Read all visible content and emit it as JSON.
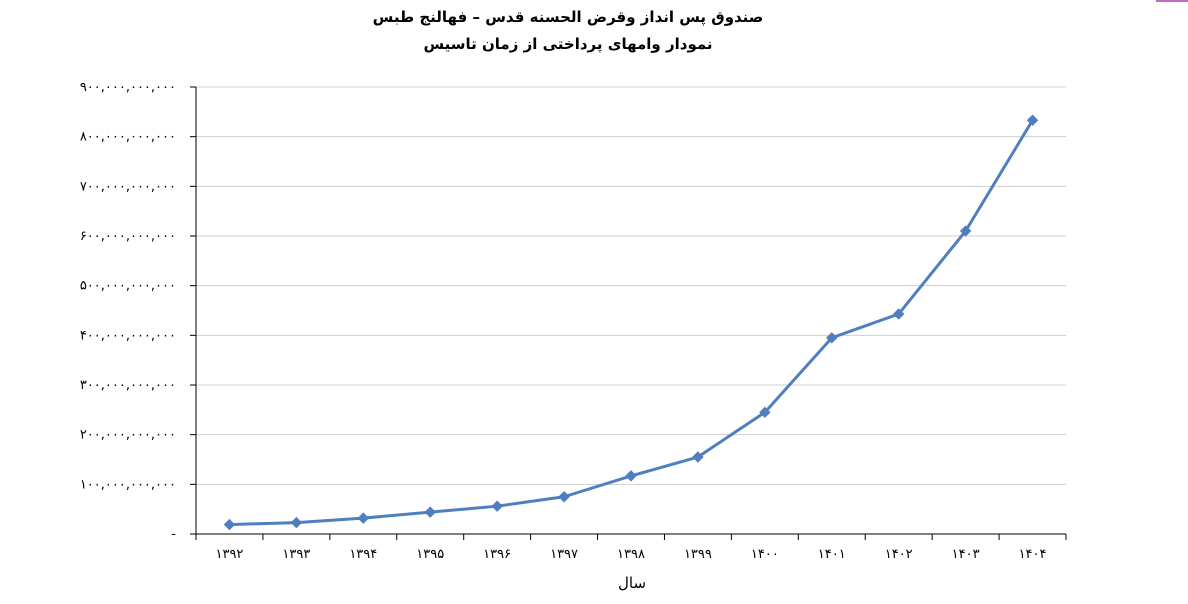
{
  "chart_data": {
    "type": "line",
    "title": "صندوق پس انداز وقرض الحسنه قدس – فهالنج طبس",
    "subtitle": "نمودار وامهای  پرداختی از زمان تاسیس",
    "xlabel": "سال",
    "ylabel": "",
    "categories": [
      "۱۳۹۲",
      "۱۳۹۳",
      "۱۳۹۴",
      "۱۳۹۵",
      "۱۳۹۶",
      "۱۳۹۷",
      "۱۳۹۸",
      "۱۳۹۹",
      "۱۴۰۰",
      "۱۴۰۱",
      "۱۴۰۲",
      "۱۴۰۳",
      "۱۴۰۴"
    ],
    "series": [
      {
        "values": [
          19000000000,
          23000000000,
          32000000000,
          44000000000,
          56000000000,
          75000000000,
          117000000000,
          155000000000,
          245000000000,
          395000000000,
          443000000000,
          610000000000,
          833000000000
        ]
      }
    ],
    "ylim": [
      0,
      900000000000
    ],
    "y_ticks": [
      {
        "value": 0,
        "label": "-"
      },
      {
        "value": 100000000000,
        "label": "۱۰۰,۰۰۰,۰۰۰,۰۰۰"
      },
      {
        "value": 200000000000,
        "label": "۲۰۰,۰۰۰,۰۰۰,۰۰۰"
      },
      {
        "value": 300000000000,
        "label": "۳۰۰,۰۰۰,۰۰۰,۰۰۰"
      },
      {
        "value": 400000000000,
        "label": "۴۰۰,۰۰۰,۰۰۰,۰۰۰"
      },
      {
        "value": 500000000000,
        "label": "۵۰۰,۰۰۰,۰۰۰,۰۰۰"
      },
      {
        "value": 600000000000,
        "label": "۶۰۰,۰۰۰,۰۰۰,۰۰۰"
      },
      {
        "value": 700000000000,
        "label": "۷۰۰,۰۰۰,۰۰۰,۰۰۰"
      },
      {
        "value": 800000000000,
        "label": "۸۰۰,۰۰۰,۰۰۰,۰۰۰"
      },
      {
        "value": 900000000000,
        "label": "۹۰۰,۰۰۰,۰۰۰,۰۰۰"
      }
    ],
    "grid": true,
    "legend": "none",
    "line_color": "#4f7fc0",
    "gridline_color": "#d0d0d0"
  }
}
